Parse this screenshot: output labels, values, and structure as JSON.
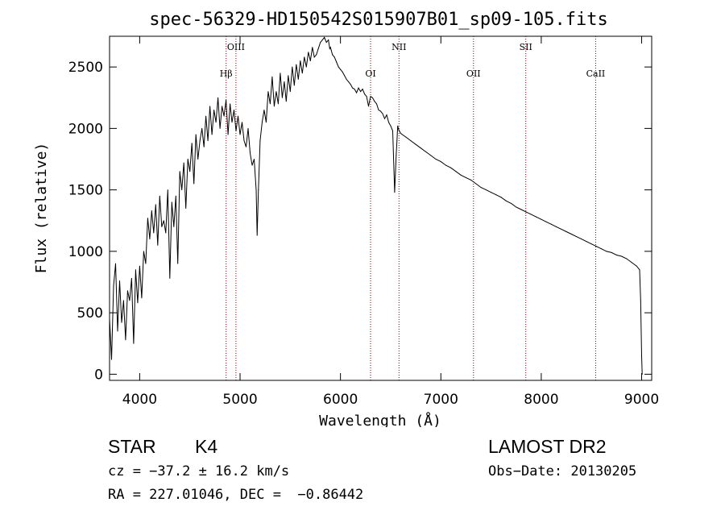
{
  "chart_data": {
    "type": "line",
    "title": "spec-56329-HD150542S015907B01_sp09-105.fits",
    "xlabel": "Wavelength (Å)",
    "ylabel": "Flux (relative)",
    "xlim": [
      3700,
      9100
    ],
    "ylim": [
      -50,
      2750
    ],
    "xticks": [
      4000,
      5000,
      6000,
      7000,
      8000,
      9000
    ],
    "yticks": [
      0,
      500,
      1000,
      1500,
      2000,
      2500
    ],
    "grid": false,
    "line_color": "#000000",
    "marker_color": "#8b0000",
    "spectral_lines": [
      {
        "label": "Hβ",
        "wavelength": 4861
      },
      {
        "label": "OIII",
        "wavelength": 4959
      },
      {
        "label": "OI",
        "wavelength": 6300
      },
      {
        "label": "NII",
        "wavelength": 6583
      },
      {
        "label": "OII",
        "wavelength": 7325
      },
      {
        "label": "SII",
        "wavelength": 7846
      },
      {
        "label": "CaII",
        "wavelength": 8542
      }
    ],
    "series": [
      {
        "x": [
          3700,
          3720,
          3740,
          3760,
          3780,
          3800,
          3820,
          3840,
          3860,
          3880,
          3900,
          3920,
          3940,
          3960,
          3980,
          4000,
          4020,
          4040,
          4060,
          4080,
          4100,
          4120,
          4140,
          4160,
          4180,
          4200,
          4220,
          4240,
          4260,
          4280,
          4300,
          4320,
          4340,
          4360,
          4380,
          4400,
          4420,
          4440,
          4460,
          4480,
          4500,
          4520,
          4540,
          4560,
          4580,
          4600,
          4620,
          4640,
          4660,
          4680,
          4700,
          4720,
          4740,
          4760,
          4780,
          4800,
          4820,
          4840,
          4860,
          4880,
          4900,
          4920,
          4940,
          4960,
          4980,
          5000,
          5020,
          5040,
          5060,
          5080,
          5100,
          5120,
          5140,
          5160,
          5170,
          5183,
          5200,
          5220,
          5240,
          5260,
          5280,
          5300,
          5320,
          5340,
          5360,
          5380,
          5400,
          5420,
          5440,
          5460,
          5480,
          5500,
          5520,
          5540,
          5560,
          5580,
          5600,
          5620,
          5640,
          5660,
          5680,
          5700,
          5720,
          5740,
          5760,
          5780,
          5800,
          5820,
          5840,
          5860,
          5880,
          5893,
          5900,
          5920,
          5940,
          5960,
          5980,
          6000,
          6020,
          6040,
          6060,
          6080,
          6100,
          6120,
          6140,
          6160,
          6180,
          6200,
          6220,
          6240,
          6260,
          6280,
          6300,
          6320,
          6340,
          6360,
          6380,
          6400,
          6420,
          6440,
          6460,
          6480,
          6500,
          6520,
          6540,
          6555,
          6563,
          6570,
          6580,
          6600,
          6650,
          6700,
          6750,
          6800,
          6850,
          6900,
          6950,
          7000,
          7050,
          7100,
          7150,
          7200,
          7250,
          7300,
          7350,
          7400,
          7450,
          7500,
          7550,
          7600,
          7650,
          7700,
          7750,
          7800,
          7850,
          7900,
          7950,
          8000,
          8050,
          8100,
          8150,
          8200,
          8250,
          8300,
          8350,
          8400,
          8450,
          8500,
          8550,
          8600,
          8650,
          8700,
          8750,
          8800,
          8850,
          8900,
          8950,
          8980,
          8990,
          9000,
          9005
        ],
        "values": [
          450,
          120,
          720,
          900,
          350,
          760,
          420,
          600,
          280,
          680,
          600,
          780,
          250,
          850,
          580,
          880,
          620,
          1000,
          900,
          1270,
          1100,
          1330,
          1150,
          1380,
          1050,
          1450,
          1200,
          1250,
          1150,
          1500,
          780,
          1400,
          1200,
          1450,
          900,
          1650,
          1500,
          1720,
          1350,
          1750,
          1650,
          1880,
          1550,
          1950,
          1750,
          1900,
          2000,
          1850,
          2100,
          1900,
          2180,
          1950,
          2150,
          2050,
          2250,
          2000,
          2180,
          2100,
          2230,
          1950,
          2200,
          2050,
          2150,
          1980,
          2100,
          1950,
          2050,
          1900,
          1850,
          2000,
          1800,
          1700,
          1750,
          1500,
          1130,
          1500,
          1900,
          2050,
          2150,
          2050,
          2300,
          2200,
          2420,
          2180,
          2300,
          2200,
          2450,
          2250,
          2380,
          2220,
          2430,
          2300,
          2500,
          2350,
          2520,
          2400,
          2550,
          2450,
          2580,
          2500,
          2620,
          2550,
          2660,
          2580,
          2600,
          2650,
          2700,
          2720,
          2740,
          2700,
          2720,
          2650,
          2660,
          2600,
          2580,
          2540,
          2500,
          2480,
          2460,
          2430,
          2400,
          2380,
          2360,
          2330,
          2320,
          2290,
          2330,
          2300,
          2320,
          2280,
          2260,
          2180,
          2260,
          2250,
          2220,
          2200,
          2150,
          2140,
          2120,
          2080,
          2110,
          2050,
          2020,
          1980,
          1480,
          1780,
          1900,
          2020,
          1990,
          1960,
          1930,
          1900,
          1870,
          1840,
          1810,
          1780,
          1750,
          1730,
          1700,
          1680,
          1650,
          1620,
          1600,
          1580,
          1550,
          1520,
          1500,
          1480,
          1460,
          1440,
          1410,
          1390,
          1360,
          1340,
          1320,
          1300,
          1280,
          1260,
          1240,
          1220,
          1200,
          1180,
          1160,
          1140,
          1120,
          1100,
          1080,
          1060,
          1040,
          1020,
          1000,
          990,
          970,
          960,
          940,
          910,
          880,
          850,
          600,
          150,
          0
        ]
      }
    ]
  },
  "info": {
    "obj_class": "STAR",
    "subclass": "K4",
    "survey": "LAMOST DR2",
    "cz": "cz = −37.2 ± 16.2 km/s",
    "obs_date": "Obs−Date: 20130205",
    "coords": "RA = 227.01046, DEC =  −0.86442"
  }
}
